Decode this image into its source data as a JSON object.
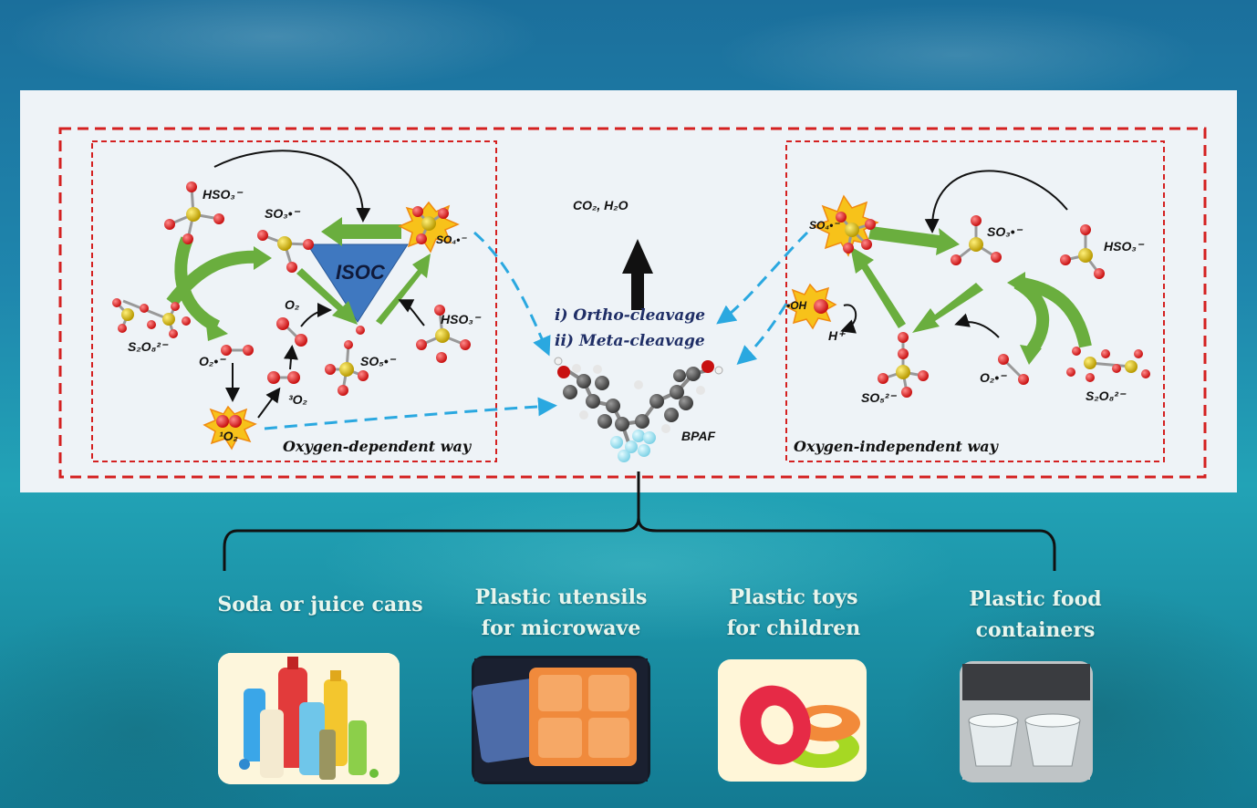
{
  "diagram": {
    "left_way_label": "Oxygen-dependent way",
    "right_way_label": "Oxygen-independent way",
    "center_label": "ISOC",
    "products": "CO₂, H₂O",
    "cleavage_1": "i) Ortho-cleavage",
    "cleavage_2": "ii) Meta-cleavage",
    "compound": "BPAF",
    "species_left": {
      "hso3_top": "HSO₃⁻",
      "so3_radical": "SO₃•⁻",
      "so4_radical": "SO₄•⁻",
      "s2o8": "S₂O₈²⁻",
      "o2_anion": "O₂•⁻",
      "o2": "O₂",
      "triplet_o2": "³O₂",
      "singlet_o2": "¹O₂",
      "so5_radical": "SO₅•⁻",
      "hso3_right": "HSO₃⁻"
    },
    "species_right": {
      "so4_radical": "SO₄•⁻",
      "so3_radical": "SO₃•⁻",
      "hso3": "HSO₃⁻",
      "oh_radical": "•OH",
      "h_plus": "H⁺",
      "so5": "SO₅²⁻",
      "o2_anion": "O₂•⁻",
      "s2o8": "S₂O₈²⁻"
    }
  },
  "sources": [
    {
      "label_line1": "Soda or juice cans",
      "label_line2": "",
      "image": "bottles"
    },
    {
      "label_line1": "Plastic utensils",
      "label_line2": "for microwave",
      "image": "microwave-trays"
    },
    {
      "label_line1": "Plastic toys",
      "label_line2": "for children",
      "image": "toy-rings"
    },
    {
      "label_line1": "Plastic food",
      "label_line2": "containers",
      "image": "plastic-cups"
    }
  ],
  "colors": {
    "dashed_border": "#d42020",
    "green_arrow": "#6aae3e",
    "blue_dashed_arrow": "#2aa8e0",
    "isoc_triangle": "#3f78c0",
    "star": "#f7c21a"
  }
}
